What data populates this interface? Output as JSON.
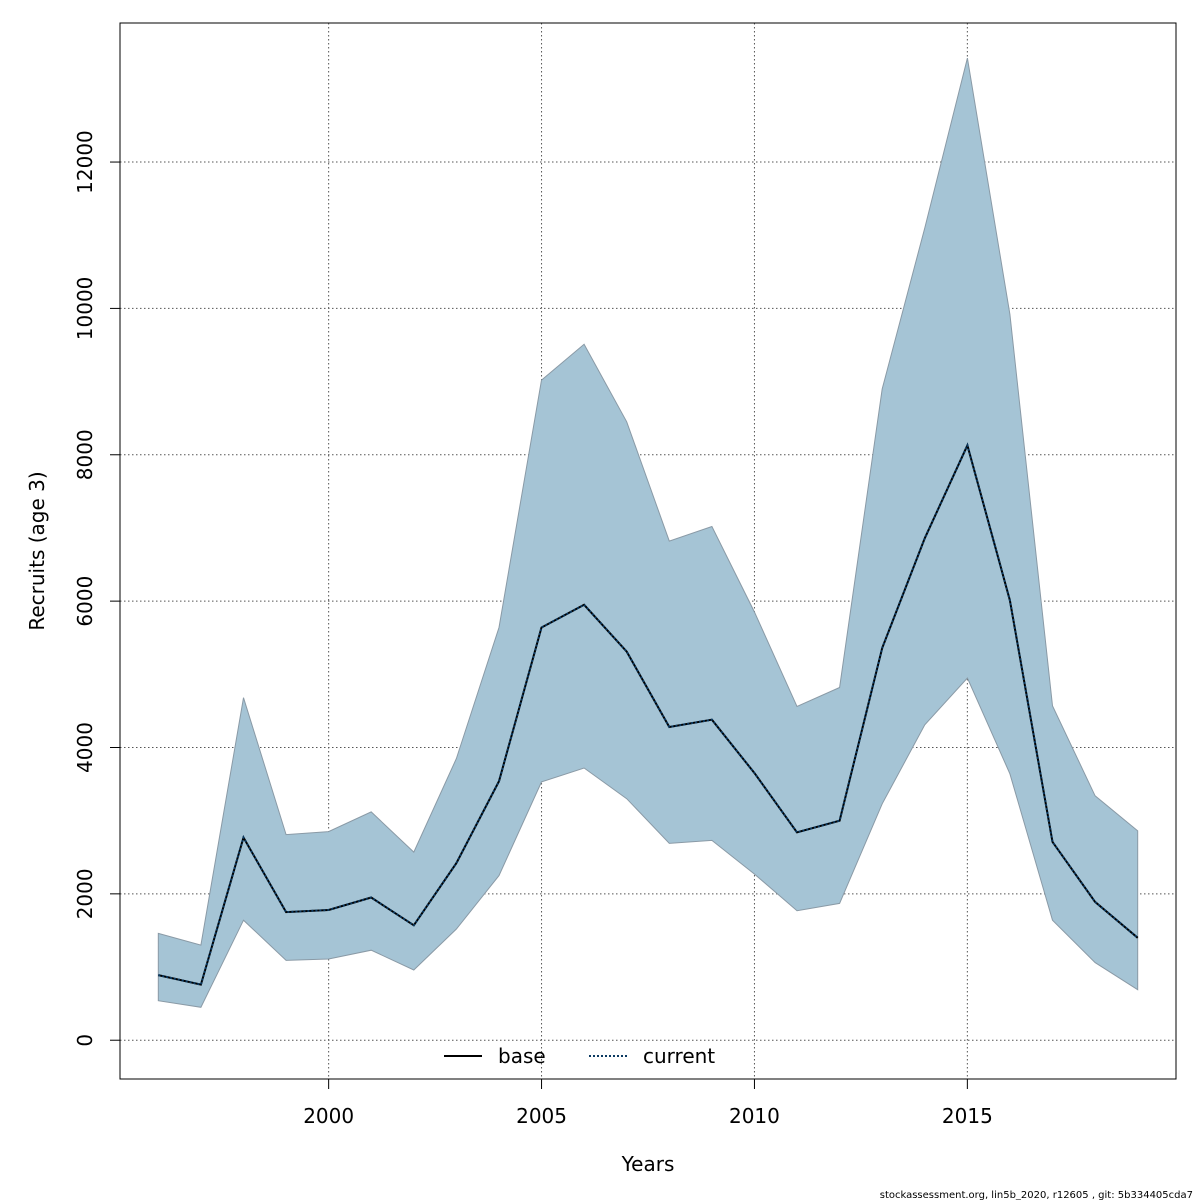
{
  "chart_data": {
    "type": "area",
    "title": "",
    "xlabel": "Years",
    "ylabel": "Recruits (age 3)",
    "xlim": [
      1995.1,
      2019.9
    ],
    "ylim": [
      -530,
      13900
    ],
    "x_ticks": [
      2000,
      2005,
      2010,
      2015
    ],
    "y_ticks": [
      0,
      2000,
      4000,
      6000,
      8000,
      10000,
      12000
    ],
    "grid": true,
    "legend_position": "bottom-center",
    "colors": {
      "band": "#a5c4d5",
      "band_edge": "#8a9aa6",
      "base": "#000000",
      "current": "#0b3a62"
    },
    "x": [
      1996,
      1997,
      1998,
      1999,
      2000,
      2001,
      2002,
      2003,
      2004,
      2005,
      2006,
      2007,
      2008,
      2009,
      2010,
      2011,
      2012,
      2013,
      2014,
      2015,
      2016,
      2017,
      2018,
      2019
    ],
    "upper": [
      1460,
      1300,
      4680,
      2810,
      2850,
      3120,
      2570,
      3850,
      5640,
      9020,
      9510,
      8450,
      6820,
      7020,
      5850,
      4560,
      4820,
      8900,
      11100,
      13420,
      9920,
      4570,
      3340,
      2860
    ],
    "lower": [
      540,
      450,
      1640,
      1090,
      1110,
      1230,
      960,
      1520,
      2250,
      3530,
      3720,
      3300,
      2690,
      2730,
      2270,
      1770,
      1870,
      3230,
      4310,
      4950,
      3640,
      1640,
      1060,
      690
    ],
    "series": [
      {
        "name": "base",
        "style": "solid",
        "values": [
          890,
          760,
          2770,
          1750,
          1780,
          1950,
          1570,
          2420,
          3540,
          5640,
          5950,
          5310,
          4280,
          4380,
          3650,
          2840,
          3000,
          5360,
          6860,
          8130,
          6010,
          2710,
          1890,
          1400
        ]
      },
      {
        "name": "current",
        "style": "dotted",
        "values": [
          890,
          760,
          2770,
          1750,
          1780,
          1950,
          1570,
          2420,
          3540,
          5640,
          5950,
          5310,
          4280,
          4380,
          3650,
          2840,
          3000,
          5360,
          6860,
          8130,
          6010,
          2710,
          1890,
          1400
        ]
      }
    ],
    "footer": "stockassessment.org, lin5b_2020, r12605 , git: 5b334405cda7"
  }
}
